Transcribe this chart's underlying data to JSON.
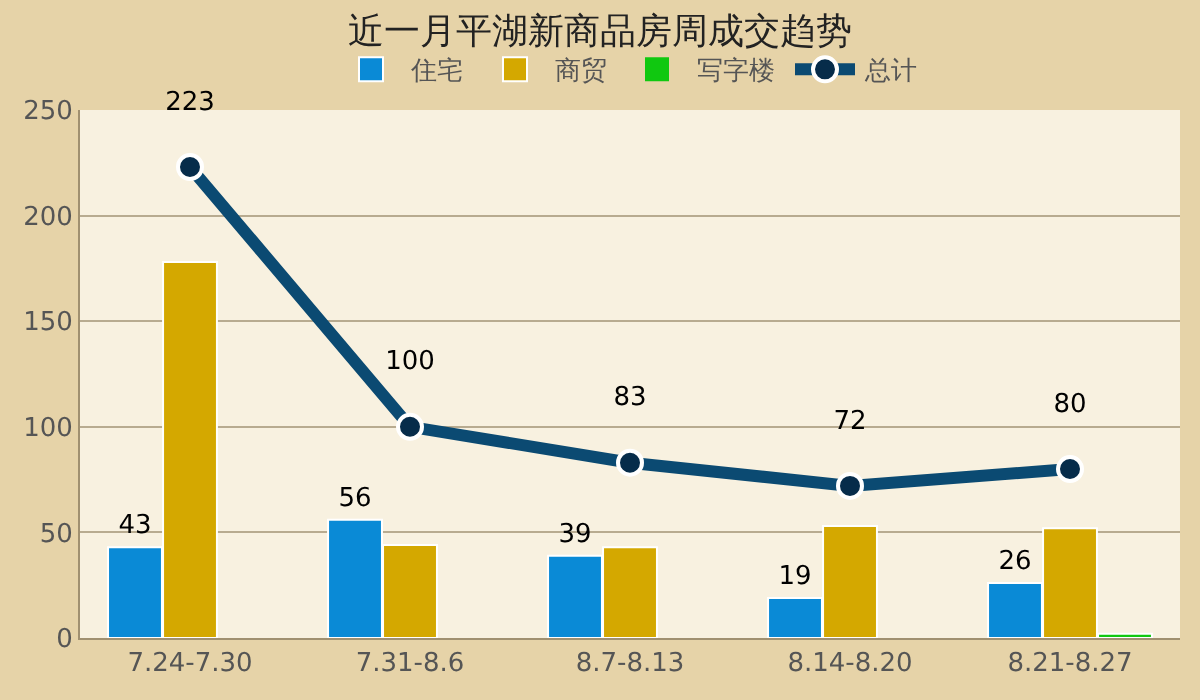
{
  "chart_data": {
    "type": "bar",
    "title": "近一月平湖新商品房周成交趋势",
    "categories": [
      "7.24-7.30",
      "7.31-8.6",
      "8.7-8.13",
      "8.14-8.20",
      "8.21-8.27"
    ],
    "series": [
      {
        "name": "住宅",
        "color": "#0a8ad6",
        "values": [
          43,
          56,
          39,
          19,
          26
        ],
        "value_labels": [
          "43",
          "56",
          "39",
          "19",
          "26"
        ]
      },
      {
        "name": "商贸",
        "color": "#d4a800",
        "values": [
          178,
          44,
          43,
          53,
          52
        ]
      },
      {
        "name": "写字楼",
        "color": "#10c810",
        "values": [
          0,
          0,
          0,
          0,
          2
        ]
      },
      {
        "name": "总计",
        "type": "line",
        "color": "#0b4a72",
        "values": [
          223,
          100,
          83,
          72,
          80
        ],
        "value_labels": [
          "223",
          "100",
          "83",
          "72",
          "80"
        ],
        "marker": "circle"
      }
    ],
    "ylim": [
      0,
      250
    ],
    "yticks": [
      0,
      50,
      100,
      150,
      200,
      250
    ],
    "grid": "y",
    "legend": "top"
  }
}
